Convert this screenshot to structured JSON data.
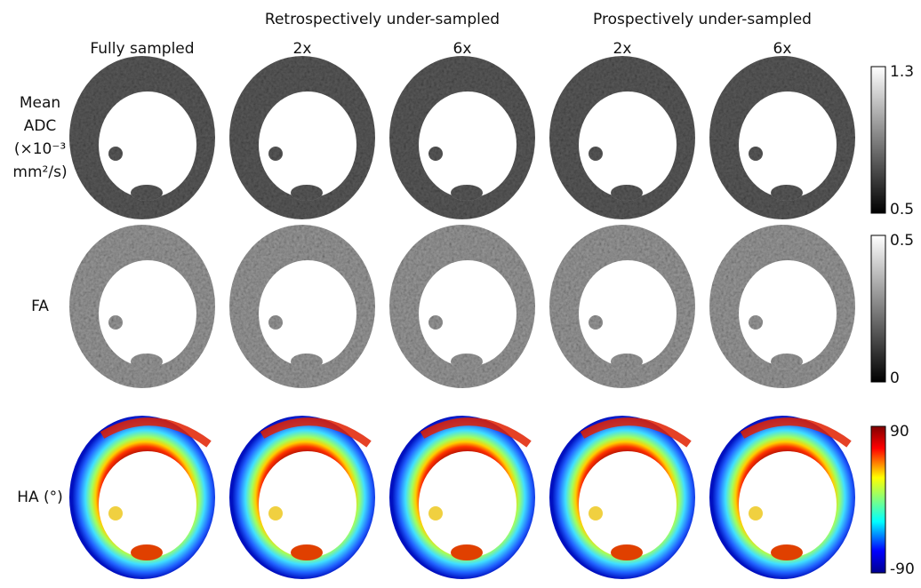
{
  "header": {
    "groups": [
      "Retrospectively under-sampled",
      "Prospectively under-sampled"
    ],
    "columns": [
      "Fully sampled",
      "2x",
      "6x",
      "2x",
      "6x"
    ]
  },
  "rows": [
    {
      "label": [
        "Mean",
        "ADC",
        "(×10⁻³",
        "mm²/s)"
      ],
      "colorbar": {
        "max": "1.3",
        "min": "0.5"
      }
    },
    {
      "label": [
        "FA"
      ],
      "colorbar": {
        "max": "0.5",
        "min": "0"
      }
    },
    {
      "label": [
        "HA (°)"
      ],
      "colorbar": {
        "max": "90",
        "min": "-90"
      }
    }
  ]
}
